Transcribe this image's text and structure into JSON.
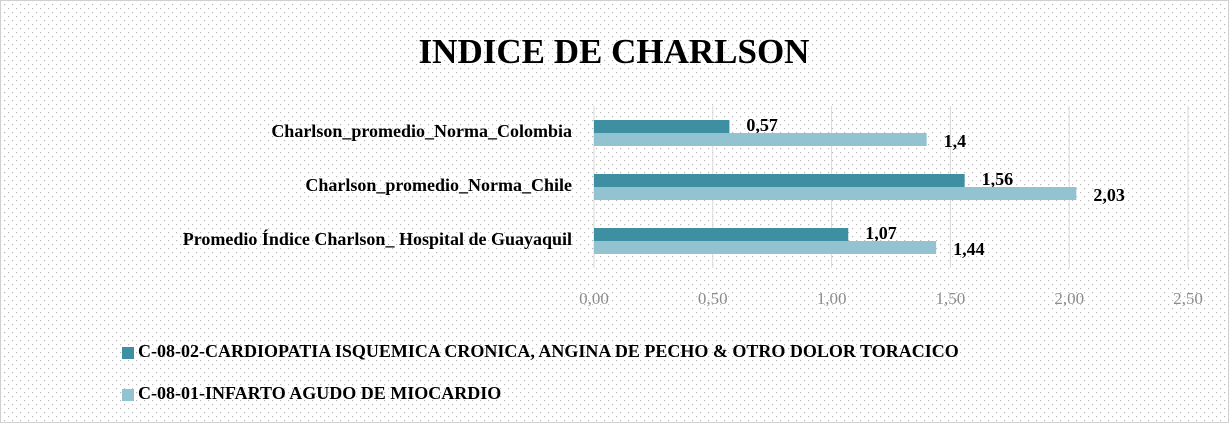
{
  "chart_data": {
    "type": "hbar",
    "title": "INDICE DE CHARLSON",
    "categories": [
      "Charlson_promedio_Norma_Colombia",
      "Charlson_promedio_Norma_Chile",
      "Promedio Índice Charlson_ Hospital de Guayaquil"
    ],
    "series": [
      {
        "name": "C-08-02-CARDIOPATIA ISQUEMICA CRONICA, ANGINA DE PECHO & OTRO DOLOR TORACICO",
        "color": "#3f8fa3",
        "values": [
          0.57,
          1.56,
          1.07
        ],
        "value_labels": [
          "0,57",
          "1,56",
          "1,07"
        ]
      },
      {
        "name": "C-08-01-INFARTO AGUDO DE MIOCARDIO",
        "color": "#93c3d1",
        "values": [
          1.4,
          2.03,
          1.44
        ],
        "value_labels": [
          "1,4",
          "2,03",
          "1,44"
        ]
      }
    ],
    "xlim": [
      0,
      2.5
    ],
    "xticks": [
      {
        "value": 0,
        "label": "0,00"
      },
      {
        "value": 0.5,
        "label": "0,50"
      },
      {
        "value": 1,
        "label": "1,00"
      },
      {
        "value": 1.5,
        "label": "1,50"
      },
      {
        "value": 2,
        "label": "2,00"
      },
      {
        "value": 2.5,
        "label": "2,50"
      }
    ],
    "grid": true
  }
}
